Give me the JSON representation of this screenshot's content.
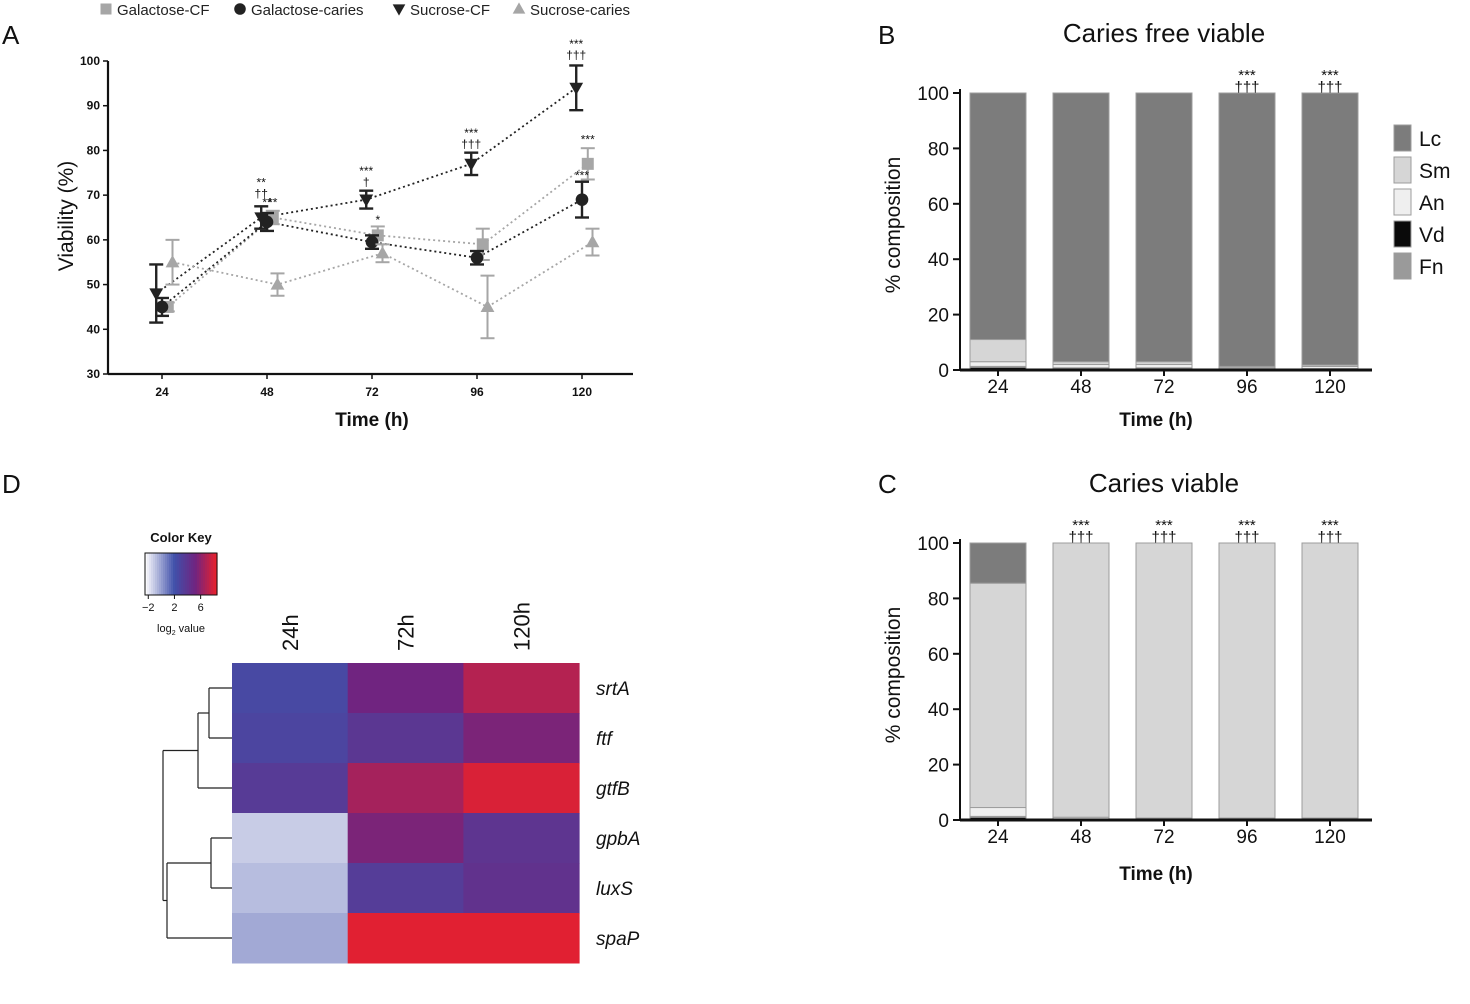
{
  "chart_data": [
    {
      "panel": "A",
      "type": "line",
      "title": "",
      "xlabel": "Time (h)",
      "ylabel": "Viability (%)",
      "ylim": [
        30,
        100
      ],
      "yticks": [
        30,
        40,
        50,
        60,
        70,
        80,
        90,
        100
      ],
      "x": [
        24,
        48,
        72,
        96,
        120
      ],
      "legend_position": "top",
      "series": [
        {
          "name": "Galactose-CF",
          "marker": "square",
          "color": "#a6a6a6",
          "offset": 0.55,
          "values": [
            45,
            65,
            61,
            59,
            77
          ],
          "errors": [
            1,
            1.5,
            2,
            3.5,
            3.5
          ]
        },
        {
          "name": "Galactose-caries",
          "marker": "circle",
          "color": "#222222",
          "offset": 0.0,
          "values": [
            45,
            64,
            59.5,
            56,
            69
          ],
          "errors": [
            2,
            2,
            1.5,
            1.5,
            4
          ]
        },
        {
          "name": "Sucrose-CF",
          "marker": "triangle-down",
          "color": "#222222",
          "offset": -0.55,
          "values": [
            48,
            65,
            69,
            77,
            94
          ],
          "errors": [
            6.5,
            2.5,
            2,
            2.5,
            5
          ]
        },
        {
          "name": "Sucrose-caries",
          "marker": "triangle-up",
          "color": "#a6a6a6",
          "offset": 1.0,
          "values": [
            55,
            50,
            57,
            45,
            59.5
          ],
          "errors": [
            5,
            2.5,
            2,
            7,
            3
          ]
        }
      ],
      "annotations": [
        {
          "x": 48,
          "y": 69.5,
          "offset": -0.55,
          "lines": [
            "**",
            "††"
          ]
        },
        {
          "x": 48,
          "y": 67.5,
          "offset": 0.0,
          "lines": [
            "**"
          ]
        },
        {
          "x": 48,
          "y": 67.5,
          "offset": 0.55,
          "lines": [
            "**"
          ]
        },
        {
          "x": 72,
          "y": 72,
          "offset": -0.55,
          "lines": [
            "***",
            "†"
          ]
        },
        {
          "x": 72,
          "y": 63.5,
          "offset": 0.55,
          "lines": [
            "*"
          ]
        },
        {
          "x": 96,
          "y": 80.5,
          "offset": -0.55,
          "lines": [
            "***",
            "†††"
          ]
        },
        {
          "x": 120,
          "y": 100.5,
          "offset": -0.55,
          "lines": [
            "***",
            "†††"
          ]
        },
        {
          "x": 120,
          "y": 81.5,
          "offset": 0.55,
          "lines": [
            "***"
          ]
        },
        {
          "x": 120,
          "y": 73.5,
          "offset": 0.0,
          "lines": [
            "***"
          ]
        }
      ]
    },
    {
      "panel": "B",
      "type": "bar",
      "stacked": true,
      "title": "Caries free viable",
      "xlabel": "Time (h)",
      "ylabel": "% composition",
      "ylim": [
        0,
        100
      ],
      "yticks": [
        0,
        20,
        40,
        60,
        80,
        100
      ],
      "categories": [
        "24",
        "48",
        "72",
        "96",
        "120"
      ],
      "legend_position": "right",
      "series": [
        {
          "name": "Vd",
          "color": "#0a0a0a",
          "values": [
            1,
            0.5,
            0.5,
            0.3,
            0.3
          ]
        },
        {
          "name": "Fn",
          "color": "#9a9a9a",
          "values": [
            0.3,
            0.3,
            0.3,
            0.2,
            0.2
          ]
        },
        {
          "name": "An",
          "color": "#efefef",
          "values": [
            1.7,
            1.2,
            1.2,
            0.5,
            0.8
          ]
        },
        {
          "name": "Sm",
          "color": "#d6d6d6",
          "values": [
            8,
            1,
            1,
            0.3,
            0.5
          ]
        },
        {
          "name": "Lc",
          "color": "#7c7c7c",
          "values": [
            89,
            97,
            97,
            98.7,
            98.2
          ]
        }
      ],
      "annotations": [
        {
          "category": "96",
          "lines": [
            "***",
            "†††"
          ]
        },
        {
          "category": "120",
          "lines": [
            "***",
            "†††"
          ]
        }
      ]
    },
    {
      "panel": "C",
      "type": "bar",
      "stacked": true,
      "title": "Caries viable",
      "xlabel": "Time (h)",
      "ylabel": "% composition",
      "ylim": [
        0,
        100
      ],
      "yticks": [
        0,
        20,
        40,
        60,
        80,
        100
      ],
      "categories": [
        "24",
        "48",
        "72",
        "96",
        "120"
      ],
      "series": [
        {
          "name": "Vd",
          "color": "#0a0a0a",
          "values": [
            1,
            0.2,
            0.2,
            0.2,
            0.2
          ]
        },
        {
          "name": "Fn",
          "color": "#9a9a9a",
          "values": [
            0.3,
            0.1,
            0.1,
            0.1,
            0.1
          ]
        },
        {
          "name": "An",
          "color": "#efefef",
          "values": [
            3.2,
            0.7,
            0.4,
            0.4,
            0.4
          ]
        },
        {
          "name": "Sm",
          "color": "#d6d6d6",
          "values": [
            81,
            99,
            99.3,
            99.3,
            99.3
          ]
        },
        {
          "name": "Lc",
          "color": "#7c7c7c",
          "values": [
            14.5,
            0,
            0,
            0,
            0
          ]
        }
      ],
      "annotations": [
        {
          "category": "48",
          "lines": [
            "***",
            "†††"
          ]
        },
        {
          "category": "72",
          "lines": [
            "***",
            "†††"
          ]
        },
        {
          "category": "96",
          "lines": [
            "***",
            "†††"
          ]
        },
        {
          "category": "120",
          "lines": [
            "***",
            "†††"
          ]
        }
      ]
    },
    {
      "panel": "D",
      "type": "heatmap",
      "title": "",
      "columns": [
        "24h",
        "72h",
        "120h"
      ],
      "rows": [
        "srtA",
        "ftf",
        "gtfB",
        "gpbA",
        "luxS",
        "spaP"
      ],
      "values": [
        [
          2.5,
          5.2,
          7.0
        ],
        [
          2.8,
          3.8,
          5.5
        ],
        [
          3.5,
          6.6,
          8.0
        ],
        [
          -1.2,
          5.5,
          4.0
        ],
        [
          -0.8,
          3.4,
          4.2
        ],
        [
          -0.3,
          8.2,
          8.2
        ]
      ],
      "color_key": {
        "title": "Color Key",
        "ticks": [
          "−2",
          "2",
          "6"
        ],
        "tick_values": [
          -2,
          2,
          6
        ],
        "range": [
          -2.5,
          8.5
        ],
        "label_prefix": "log",
        "label_sub": "2",
        "label_suffix": " value"
      }
    }
  ],
  "panel_labels": {
    "a": "A",
    "b": "B",
    "c": "C",
    "d": "D"
  }
}
